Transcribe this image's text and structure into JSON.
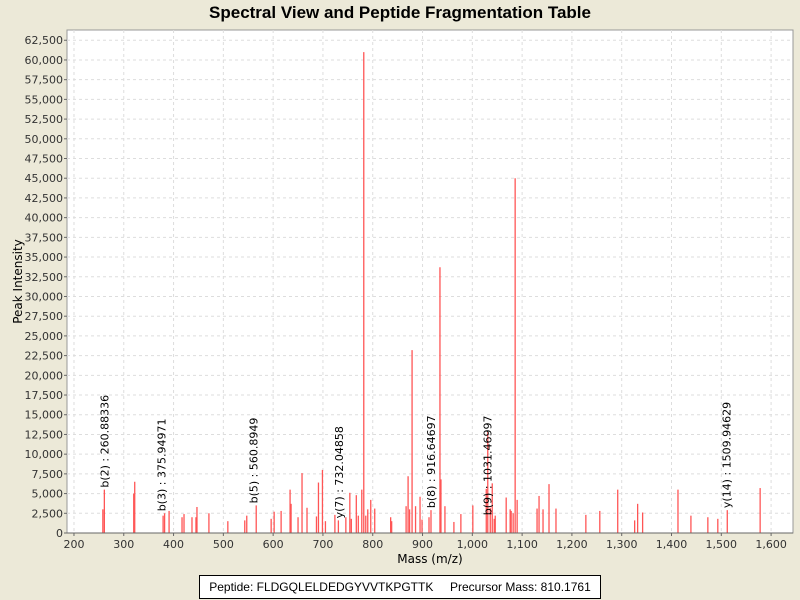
{
  "chart_data": {
    "type": "bar",
    "title": "Spectral View and Peptide Fragmentation Table",
    "xlabel": "Mass (m/z)",
    "ylabel": "Peak Intensity",
    "xlim": [
      186,
      1644
    ],
    "ylim": [
      0,
      63800
    ],
    "xticks": [
      200,
      300,
      400,
      500,
      600,
      700,
      800,
      900,
      1000,
      1100,
      1200,
      1300,
      1400,
      1500,
      1600
    ],
    "xtick_labels": [
      "200",
      "300",
      "400",
      "500",
      "600",
      "700",
      "800",
      "900",
      "1,000",
      "1,100",
      "1,200",
      "1,300",
      "1,400",
      "1,500",
      "1,600"
    ],
    "yticks": [
      0,
      2500,
      5000,
      7500,
      10000,
      12500,
      15000,
      17500,
      20000,
      22500,
      25000,
      27500,
      30000,
      32500,
      35000,
      37500,
      40000,
      42500,
      45000,
      47500,
      50000,
      52500,
      55000,
      57500,
      60000,
      62500
    ],
    "ytick_labels": [
      "0",
      "2,500",
      "5,000",
      "7,500",
      "10,000",
      "12,500",
      "15,000",
      "17,500",
      "20,000",
      "22,500",
      "25,000",
      "27,500",
      "30,000",
      "32,500",
      "35,000",
      "37,500",
      "40,000",
      "42,500",
      "45,000",
      "47,500",
      "50,000",
      "52,500",
      "55,000",
      "57,500",
      "60,000",
      "62,500"
    ],
    "grid": true,
    "peak_color": "#ff5555",
    "peaks": [
      [
        258,
        3000
      ],
      [
        261,
        5500
      ],
      [
        320,
        5000
      ],
      [
        322,
        6500
      ],
      [
        379,
        2200
      ],
      [
        382,
        2500
      ],
      [
        391,
        2800
      ],
      [
        417,
        2000
      ],
      [
        421,
        2400
      ],
      [
        437,
        2000
      ],
      [
        445,
        2000
      ],
      [
        447,
        3300
      ],
      [
        471,
        2500
      ],
      [
        509,
        1500
      ],
      [
        543,
        1600
      ],
      [
        547,
        2200
      ],
      [
        566,
        3500
      ],
      [
        596,
        1800
      ],
      [
        602,
        2700
      ],
      [
        616,
        2800
      ],
      [
        634,
        5500
      ],
      [
        636,
        3700
      ],
      [
        650,
        2000
      ],
      [
        658,
        7600
      ],
      [
        668,
        3200
      ],
      [
        687,
        2100
      ],
      [
        691,
        6400
      ],
      [
        699,
        8000
      ],
      [
        705,
        1500
      ],
      [
        724,
        2300
      ],
      [
        731,
        1600
      ],
      [
        746,
        2000
      ],
      [
        754,
        5100
      ],
      [
        757,
        1800
      ],
      [
        767,
        4800
      ],
      [
        771,
        2200
      ],
      [
        778,
        5500
      ],
      [
        782,
        61000
      ],
      [
        786,
        2200
      ],
      [
        790,
        3000
      ],
      [
        796,
        4200
      ],
      [
        804,
        3100
      ],
      [
        836,
        2000
      ],
      [
        838,
        1500
      ],
      [
        867,
        3400
      ],
      [
        871,
        7200
      ],
      [
        874,
        3000
      ],
      [
        879,
        23200
      ],
      [
        886,
        3400
      ],
      [
        895,
        4600
      ],
      [
        899,
        1700
      ],
      [
        913,
        2000
      ],
      [
        917,
        2900
      ],
      [
        935,
        33700
      ],
      [
        937,
        6800
      ],
      [
        945,
        3400
      ],
      [
        963,
        1400
      ],
      [
        977,
        2400
      ],
      [
        1001,
        3500
      ],
      [
        1028,
        5600
      ],
      [
        1031,
        12800
      ],
      [
        1036,
        3200
      ],
      [
        1040,
        6300
      ],
      [
        1044,
        1800
      ],
      [
        1046,
        2200
      ],
      [
        1068,
        4500
      ],
      [
        1076,
        3000
      ],
      [
        1078,
        2800
      ],
      [
        1082,
        2500
      ],
      [
        1086,
        45000
      ],
      [
        1090,
        4200
      ],
      [
        1130,
        3100
      ],
      [
        1134,
        4700
      ],
      [
        1142,
        3000
      ],
      [
        1154,
        6200
      ],
      [
        1168,
        3100
      ],
      [
        1228,
        2300
      ],
      [
        1256,
        2800
      ],
      [
        1292,
        5500
      ],
      [
        1326,
        1600
      ],
      [
        1332,
        3700
      ],
      [
        1342,
        2600
      ],
      [
        1413,
        5500
      ],
      [
        1439,
        2200
      ],
      [
        1473,
        2000
      ],
      [
        1493,
        1800
      ],
      [
        1512,
        2900
      ],
      [
        1578,
        5700
      ]
    ],
    "annotations": [
      {
        "text": "b(2) : 260.88336",
        "x": 261,
        "y": 5500
      },
      {
        "text": "b(3) : 375.94971",
        "x": 376,
        "y": 2500
      },
      {
        "text": "b(5) : 560.8949",
        "x": 561,
        "y": 3500
      },
      {
        "text": "y(7) : 732.04858",
        "x": 732,
        "y": 1600
      },
      {
        "text": "b(8) : 916.64697",
        "x": 917,
        "y": 2900
      },
      {
        "text": "b(9) : 1031.46997",
        "x": 1031,
        "y": 2000
      },
      {
        "text": "y(14) : 1509.94629",
        "x": 1510,
        "y": 2900
      }
    ]
  },
  "legend": {
    "peptide": "Peptide: FLDGQLELDEDGYVVTKPGTTK",
    "precursor": "Precursor Mass: 810.1761"
  }
}
